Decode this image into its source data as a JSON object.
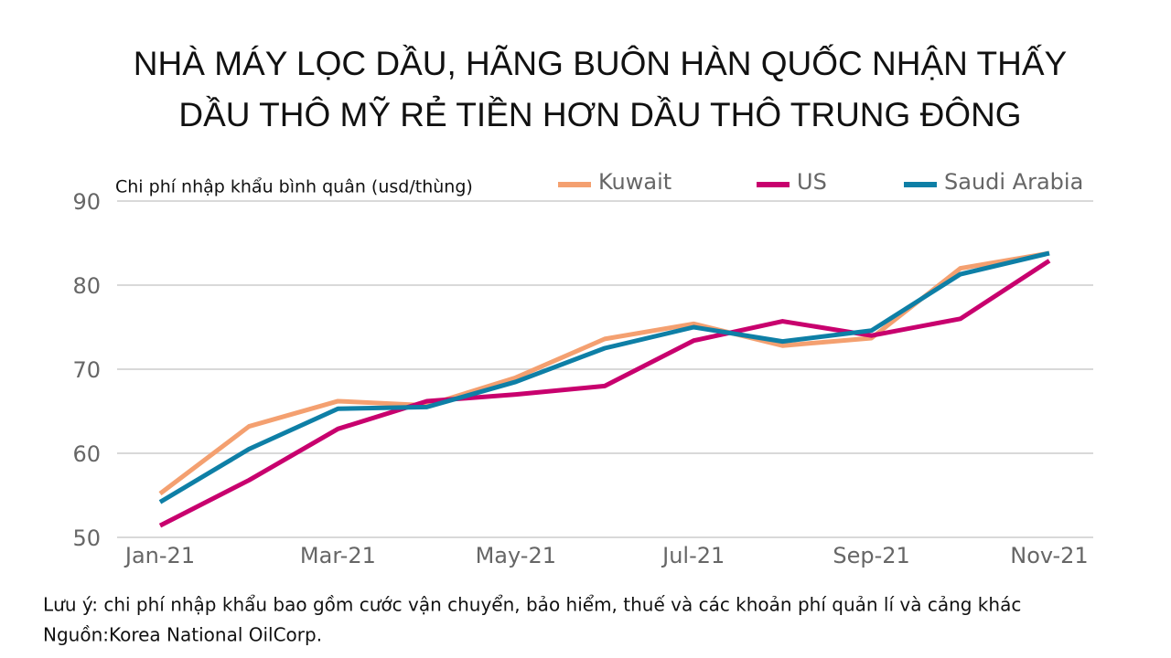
{
  "chart_data": {
    "type": "line",
    "title": [
      "NHÀ MÁY LỌC DẦU, HÃNG BUÔN HÀN QUỐC NHẬN THẤY",
      "DẦU THÔ MỸ RẺ TIỀN HƠN DẦU THÔ TRUNG ĐÔNG"
    ],
    "y_label": "Chi phí nhập khẩu bình quân (usd/thùng)",
    "categories": [
      "Jan-21",
      null,
      "Mar-21",
      null,
      "May-21",
      null,
      "Jul-21",
      null,
      "Sep-21",
      null,
      "Nov-21"
    ],
    "series": [
      {
        "name": "Kuwait",
        "color": "#f4a070",
        "values": [
          55.2,
          63.2,
          66.2,
          65.7,
          69.0,
          73.6,
          75.4,
          72.8,
          73.7,
          82.0,
          83.8
        ]
      },
      {
        "name": "US",
        "color": "#c8006e",
        "values": [
          51.4,
          56.8,
          62.9,
          66.2,
          67.0,
          68.0,
          73.4,
          75.7,
          74.0,
          76.0,
          82.9
        ]
      },
      {
        "name": "Saudi Arabia",
        "color": "#0e7fa6",
        "values": [
          54.2,
          60.5,
          65.3,
          65.5,
          68.5,
          72.5,
          75.0,
          73.3,
          74.6,
          81.3,
          83.8
        ]
      }
    ],
    "ylim": [
      50,
      90
    ],
    "yticks": [
      50,
      60,
      70,
      80,
      90
    ],
    "grid": true,
    "legend": "top",
    "notes": [
      "Lưu ý: chi phí nhập khẩu bao gồm cước vận chuyển, bảo hiểm, thuế và các khoản phí quản lí và cảng khác",
      "Nguồn:Korea National OilCorp."
    ]
  }
}
